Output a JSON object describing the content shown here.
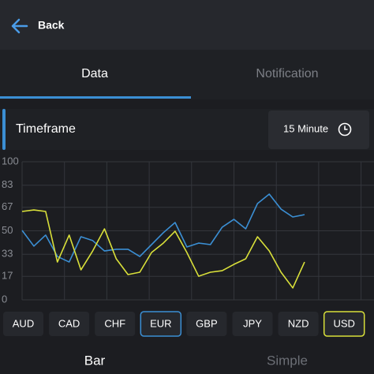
{
  "header": {
    "back": "Back"
  },
  "tabs": [
    "Data",
    "Notification"
  ],
  "timeframe": {
    "label": "Timeframe",
    "value": "15 Minute"
  },
  "chart_data": {
    "type": "line",
    "categories": [
      null,
      null,
      null,
      null,
      null,
      null,
      null,
      null,
      null,
      null,
      null,
      null,
      null,
      null,
      null,
      null,
      null,
      null,
      null,
      null,
      null,
      null,
      null,
      null,
      null
    ],
    "series": [
      {
        "color": "#3b8fd4",
        "values": [
          50.3,
          38.9,
          46.9,
          31.4,
          27.4,
          45.7,
          42.9,
          35.4,
          36.6,
          36.6,
          31.4,
          40,
          48.6,
          56,
          38.3,
          41.1,
          40,
          52.6,
          58.3,
          51.4,
          69.7,
          76.6,
          65.7,
          60,
          61.7
        ]
      },
      {
        "color": "#d9e03a",
        "values": [
          64,
          65.1,
          64,
          27.4,
          46.9,
          21.7,
          35.4,
          51.4,
          29.7,
          18.3,
          20,
          34.3,
          41.1,
          49.7,
          34.3,
          17.1,
          20,
          21.1,
          25.7,
          29.7,
          45.7,
          35.4,
          20,
          8.6,
          27.4
        ]
      }
    ],
    "ylim": [
      0,
      100
    ],
    "yticks": [
      0,
      17,
      33,
      50,
      67,
      83,
      100
    ],
    "grid": true
  },
  "currencies": [
    {
      "label": "AUD"
    },
    {
      "label": "CAD"
    },
    {
      "label": "CHF"
    },
    {
      "label": "EUR",
      "color": "#3b8fd4"
    },
    {
      "label": "GBP"
    },
    {
      "label": "JPY"
    },
    {
      "label": "NZD"
    },
    {
      "label": "USD",
      "color": "#d9e03a"
    }
  ],
  "bottom_tabs": [
    "Bar",
    "Simple"
  ]
}
